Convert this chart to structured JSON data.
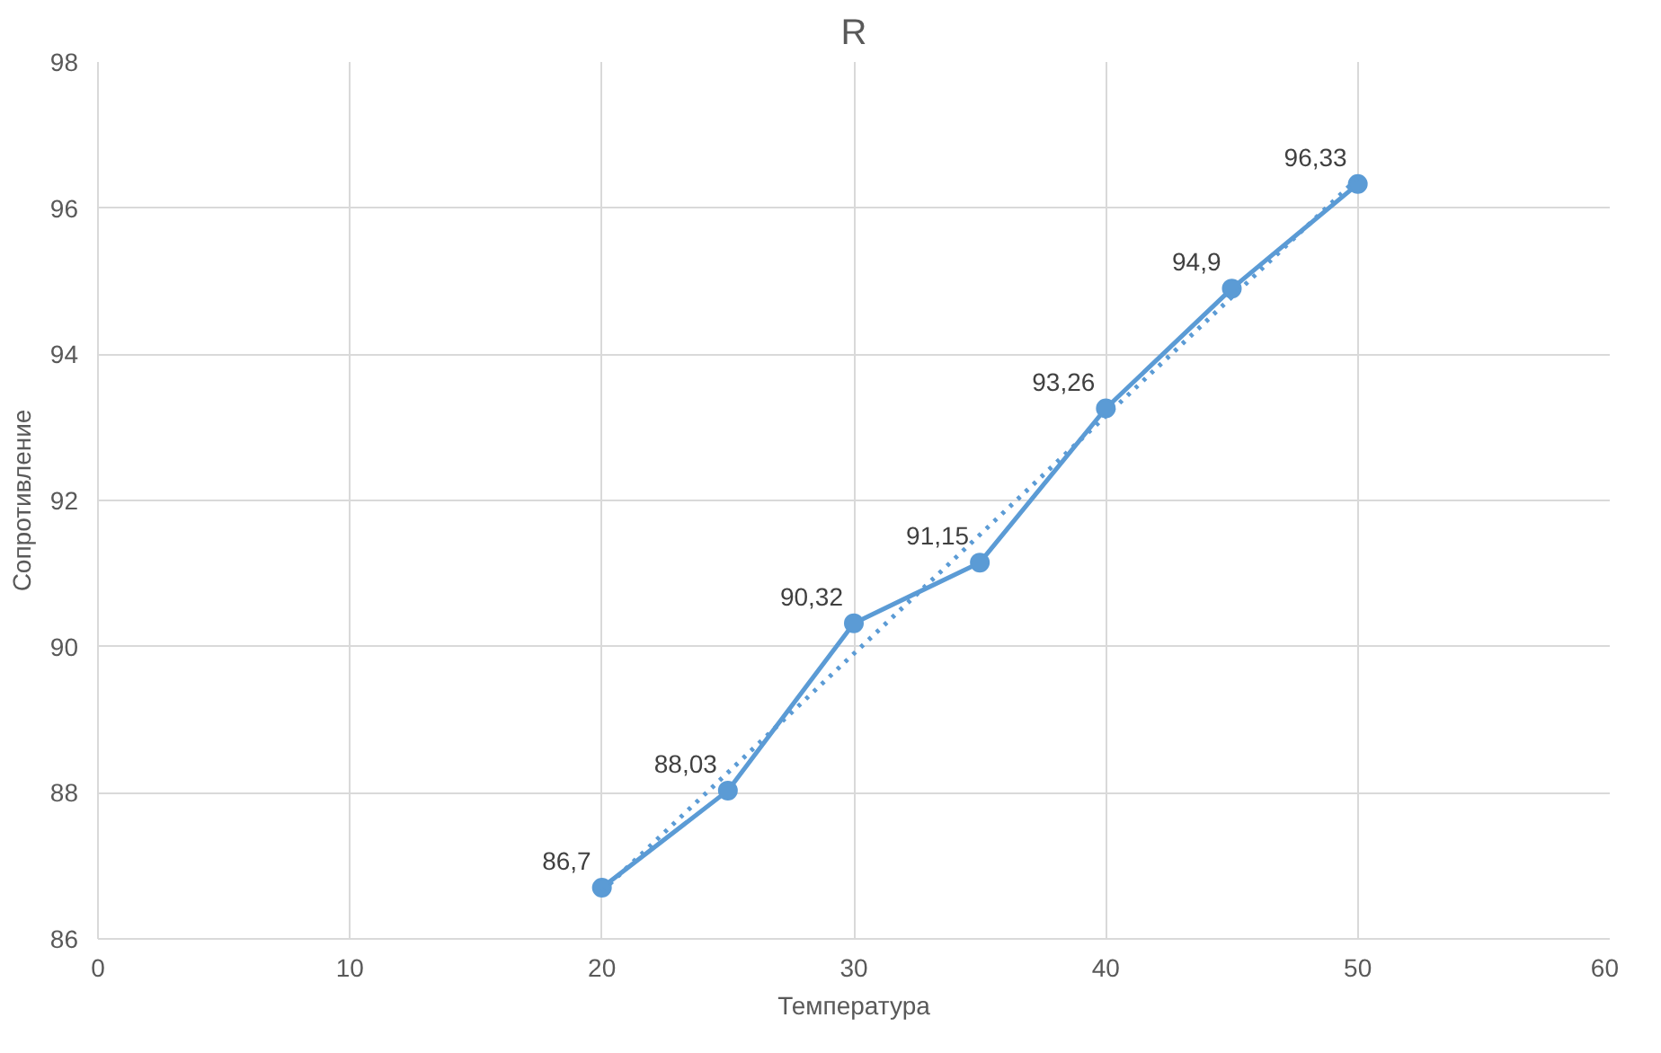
{
  "chart_data": {
    "type": "line",
    "title": "R",
    "xlabel": "Температура",
    "ylabel": "Сопротивление",
    "xlim": [
      0,
      60
    ],
    "xticks": [
      0,
      10,
      20,
      30,
      40,
      50,
      60
    ],
    "ylim": [
      86,
      98
    ],
    "yticks": [
      86,
      88,
      90,
      92,
      94,
      96,
      98
    ],
    "grid": true,
    "series": [
      {
        "color": "#5b9bd5",
        "marker": "circle",
        "line_style": "solid",
        "x": [
          20,
          25,
          30,
          35,
          40,
          45,
          50
        ],
        "values": [
          86.7,
          88.03,
          90.32,
          91.15,
          93.26,
          94.9,
          96.33
        ],
        "value_labels": [
          "86,7",
          "88,03",
          "90,32",
          "91,15",
          "93,26",
          "94,9",
          "96,33"
        ]
      },
      {
        "color": "#5b9bd5",
        "marker": "none",
        "line_style": "dotted",
        "x": [
          20,
          50
        ],
        "values": [
          86.65,
          96.41
        ]
      }
    ]
  }
}
